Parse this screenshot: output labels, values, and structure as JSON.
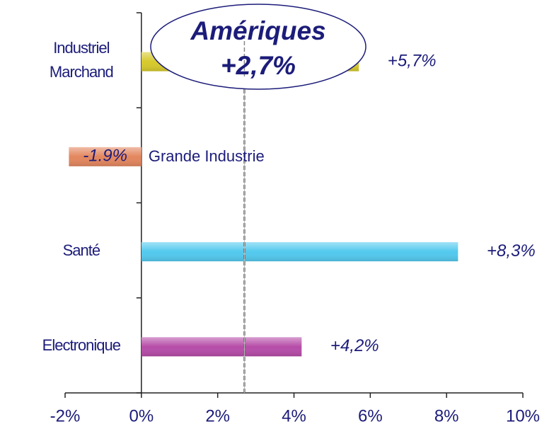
{
  "chart_data": {
    "type": "hbar",
    "categories": [
      "Industriel Marchand",
      "Grande Industrie",
      "Santé",
      "Electronique"
    ],
    "values": [
      5.7,
      -1.9,
      8.3,
      4.2
    ],
    "value_labels": [
      "+5,7%",
      "-1.9%",
      "+8,3%",
      "+4,2%"
    ],
    "colors": [
      "#d6c92c",
      "#e3865e",
      "#52c9ee",
      "#b64ca8"
    ],
    "xlim": [
      -2,
      10
    ],
    "xticks": [
      {
        "value": -2,
        "label": "-2%"
      },
      {
        "value": 0,
        "label": "0%"
      },
      {
        "value": 2,
        "label": "2%"
      },
      {
        "value": 4,
        "label": "4%"
      },
      {
        "value": 6,
        "label": "6%"
      },
      {
        "value": 8,
        "label": "8%"
      },
      {
        "value": 10,
        "label": "10%"
      }
    ],
    "reference": {
      "name": "Amériques",
      "value": 2.7,
      "label": "+2,7%"
    }
  }
}
